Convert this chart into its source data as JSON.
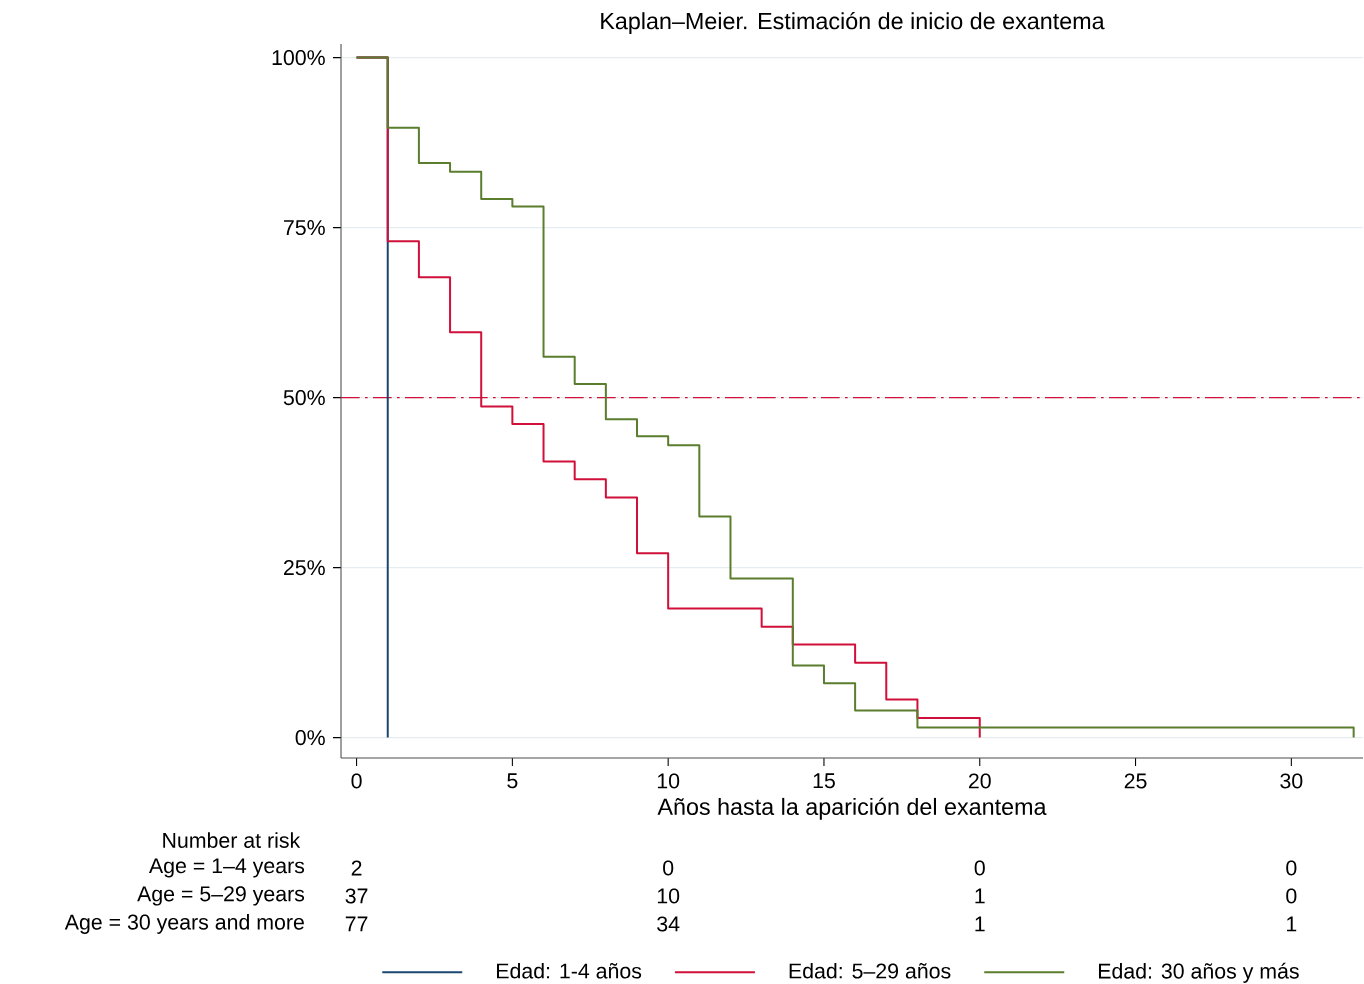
{
  "chart_data": {
    "type": "step",
    "title": "Kaplan–Meier. Estimación de inicio de exantema",
    "xlabel": "Años hasta la aparición del exantema",
    "xlim": [
      -0.5,
      32.3
    ],
    "ylim": [
      -3,
      102
    ],
    "xticks": [
      0,
      5,
      10,
      15,
      20,
      25,
      30
    ],
    "yticks": [
      {
        "value": 0,
        "label": "0%"
      },
      {
        "value": 25,
        "label": "25%"
      },
      {
        "value": 50,
        "label": "50%"
      },
      {
        "value": 75,
        "label": "75%"
      },
      {
        "value": 100,
        "label": "100%"
      }
    ],
    "grid": "y",
    "legend": "bottom",
    "line_style": "solid",
    "marker": "none",
    "ref_lines": [
      {
        "axis": "y",
        "value": 50,
        "color": "#d0103a",
        "line_style": "dashed"
      }
    ],
    "series": [
      {
        "name": "Edad: 1-4 años",
        "color": "#1a476f",
        "x": [
          0,
          1
        ],
        "values": [
          100,
          0
        ]
      },
      {
        "name": "Edad:  5–29 años",
        "color": "#d0103a",
        "x": [
          0,
          1,
          2,
          3,
          4,
          5,
          6,
          7,
          8,
          9,
          10,
          13,
          14,
          16,
          17,
          18,
          20
        ],
        "values": [
          100,
          73,
          67.7,
          59.6,
          48.7,
          46.1,
          40.6,
          38,
          35.3,
          27.1,
          19,
          16.3,
          13.7,
          11,
          5.6,
          2.9,
          0
        ]
      },
      {
        "name": "Edad: 30 años y más",
        "color": "#5a7d2e",
        "x": [
          0,
          1,
          2,
          3,
          4,
          5,
          6,
          7,
          8,
          9,
          10,
          11,
          12,
          14,
          15,
          16,
          18,
          32
        ],
        "values": [
          100,
          89.7,
          84.5,
          83.2,
          79.2,
          78.1,
          56,
          52,
          46.8,
          44.3,
          43,
          32.5,
          23.4,
          10.6,
          8,
          4,
          1.5,
          0
        ]
      }
    ],
    "annotations": [
      "Number at risk",
      "Age = 1–4 years",
      "2",
      "0",
      "0",
      "0",
      "Age = 5–29 years",
      "37",
      "10",
      "1",
      "0",
      "Age = 30 years and  more",
      "77",
      "34",
      "1",
      "1"
    ]
  }
}
